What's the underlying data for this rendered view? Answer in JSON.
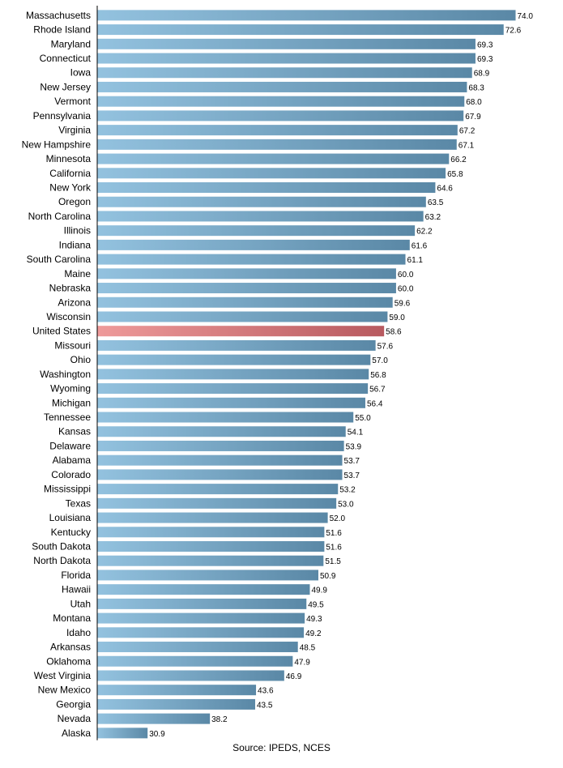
{
  "chart_data": {
    "type": "bar",
    "orientation": "horizontal",
    "categories": [
      "Massachusetts",
      "Rhode Island",
      "Maryland",
      "Connecticut",
      "Iowa",
      "New Jersey",
      "Vermont",
      "Pennsylvania",
      "Virginia",
      "New Hampshire",
      "Minnesota",
      "California",
      "New York",
      "Oregon",
      "North Carolina",
      "Illinois",
      "Indiana",
      "South Carolina",
      "Maine",
      "Nebraska",
      "Arizona",
      "Wisconsin",
      "United States",
      "Missouri",
      "Ohio",
      "Washington",
      "Wyoming",
      "Michigan",
      "Tennessee",
      "Kansas",
      "Delaware",
      "Alabama",
      "Colorado",
      "Mississippi",
      "Texas",
      "Louisiana",
      "Kentucky",
      "South Dakota",
      "North Dakota",
      "Florida",
      "Hawaii",
      "Utah",
      "Montana",
      "Idaho",
      "Arkansas",
      "Oklahoma",
      "West Virginia",
      "New Mexico",
      "Georgia",
      "Nevada",
      "Alaska"
    ],
    "values": [
      74.0,
      72.6,
      69.3,
      69.3,
      68.9,
      68.3,
      68.0,
      67.9,
      67.2,
      67.1,
      66.2,
      65.8,
      64.6,
      63.5,
      63.2,
      62.2,
      61.6,
      61.1,
      60.0,
      60.0,
      59.6,
      59.0,
      58.6,
      57.6,
      57.0,
      56.8,
      56.7,
      56.4,
      55.0,
      54.1,
      53.9,
      53.7,
      53.7,
      53.2,
      53.0,
      52.0,
      51.6,
      51.6,
      51.5,
      50.9,
      49.9,
      49.5,
      49.3,
      49.2,
      48.5,
      47.9,
      46.9,
      43.6,
      43.5,
      38.2,
      30.9
    ],
    "value_labels": [
      "74.0",
      "72.6",
      "69.3",
      "69.3",
      "68.9",
      "68.3",
      "68.0",
      "67.9",
      "67.2",
      "67.1",
      "66.2",
      "65.8",
      "64.6",
      "63.5",
      "63.2",
      "62.2",
      "61.6",
      "61.1",
      "60.0",
      "60.0",
      "59.6",
      "59.0",
      "58.6",
      "57.6",
      "57.0",
      "56.8",
      "56.7",
      "56.4",
      "55.0",
      "54.1",
      "53.9",
      "53.7",
      "53.7",
      "53.2",
      "53.0",
      "52.0",
      "51.6",
      "51.6",
      "51.5",
      "50.9",
      "49.9",
      "49.5",
      "49.3",
      "49.2",
      "48.5",
      "47.9",
      "46.9",
      "43.6",
      "43.5",
      "38.2",
      "30.9"
    ],
    "highlight": "United States",
    "xlim": [
      25,
      74
    ],
    "grid": false,
    "colors": {
      "bar_start": "#93c2df",
      "bar_end": "#5a88a6",
      "highlight_start": "#ee9a9a",
      "highlight_end": "#b85a5f",
      "axis": "#000000"
    }
  },
  "source": "Source: IPEDS, NCES"
}
